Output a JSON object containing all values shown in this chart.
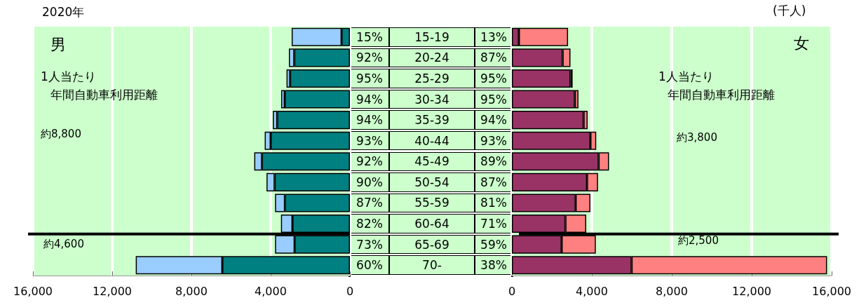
{
  "chart_data": [
    {
      "type": "bar",
      "orientation": "horizontal",
      "stacked": true,
      "title": "2020年",
      "categories": [
        "15-19",
        "20-24",
        "25-29",
        "30-34",
        "35-39",
        "40-44",
        "45-49",
        "50-54",
        "55-59",
        "60-64",
        "65-69",
        "70-"
      ],
      "series": [
        {
          "color": "#008080",
          "values": [
            420,
            2810,
            3020,
            3290,
            3670,
            4000,
            4440,
            3800,
            3280,
            2900,
            2790,
            6440
          ]
        },
        {
          "color": "#99ccff",
          "values": [
            2520,
            270,
            180,
            180,
            220,
            300,
            390,
            410,
            500,
            580,
            990,
            4370
          ]
        }
      ],
      "xlim": [
        16000,
        0
      ],
      "xticks": [
        {
          "value": 16000,
          "label": "16,000"
        },
        {
          "value": 12000,
          "label": "12,000"
        },
        {
          "value": 8000,
          "label": "8,000"
        },
        {
          "value": 4000,
          "label": "4,000"
        },
        0
      ],
      "grid": "x",
      "ref_lines": [
        {
          "axis": "y",
          "value": "65-69",
          "color": "#000000"
        }
      ],
      "annotations": [
        "男",
        "1人当たり",
        "年間自動車利用距離",
        "約8,800",
        "約4,600",
        "15%",
        "92%",
        "95%",
        "94%",
        "94%",
        "93%",
        "92%",
        "90%",
        "87%",
        "82%",
        "73%",
        "60%"
      ]
    },
    {
      "type": "bar",
      "orientation": "horizontal",
      "stacked": true,
      "categories": [
        "15-19",
        "20-24",
        "25-29",
        "30-34",
        "35-39",
        "40-44",
        "45-49",
        "50-54",
        "55-59",
        "60-64",
        "65-69",
        "70-"
      ],
      "series": [
        {
          "color": "#993366",
          "values": [
            350,
            2540,
            2930,
            3150,
            3590,
            3930,
            4340,
            3760,
            3190,
            2680,
            2490,
            5990
          ]
        },
        {
          "color": "#ff8080",
          "values": [
            2460,
            390,
            110,
            180,
            200,
            290,
            520,
            550,
            740,
            1040,
            1710,
            9780
          ]
        }
      ],
      "xlim": [
        0,
        16000
      ],
      "xticks": [
        0,
        {
          "value": 4000,
          "label": "4,000"
        },
        {
          "value": 8000,
          "label": "8,000"
        },
        {
          "value": 12000,
          "label": "12,000"
        },
        {
          "value": 16000,
          "label": "16,000"
        }
      ],
      "grid": "x",
      "tick_labels": "x",
      "ref_lines": [
        {
          "axis": "y",
          "value": "65-69",
          "color": "#000000"
        }
      ],
      "annotations": [
        "女",
        "1人当たり",
        "年間自動車利用距離",
        "約3,800",
        "約2,500",
        "(千人)",
        "13%",
        "87%",
        "95%",
        "95%",
        "94%",
        "93%",
        "89%",
        "87%",
        "81%",
        "71%",
        "59%",
        "38%"
      ]
    }
  ]
}
